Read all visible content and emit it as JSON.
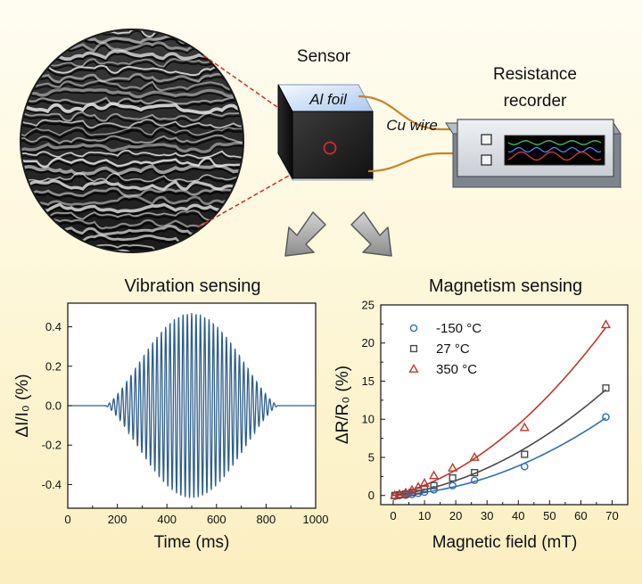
{
  "top": {
    "sensor_label": "Sensor",
    "foil_label": "Al foil",
    "wire_label": "Cu wire",
    "recorder_label_line1": "Resistance",
    "recorder_label_line2": "recorder"
  },
  "colors": {
    "vibration_line": "#2f5f8a",
    "series_cold": "#2f6fb5",
    "series_room": "#4a4a4a",
    "series_hot": "#c0392b",
    "wire": "#c7822a",
    "magnifier_outline": "#d9282a"
  },
  "chart_data": [
    {
      "type": "line",
      "title": "Vibration sensing",
      "xlabel": "Time (ms)",
      "ylabel": "ΔI/I₀ (%)",
      "xlim": [
        0,
        1000
      ],
      "ylim": [
        -0.52,
        0.52
      ],
      "xticks": [
        0,
        200,
        400,
        600,
        800,
        1000
      ],
      "yticks": [
        0.4,
        0.2,
        0.0,
        -0.2,
        -0.4
      ],
      "ytick_labels": [
        "0.4",
        "0.2",
        "0.0",
        "-0.2",
        "-0.4"
      ],
      "signal": {
        "start_ms": 150,
        "end_ms": 850,
        "center_ms": 500,
        "peak_amplitude": 0.47,
        "period_ms": 17.5
      }
    },
    {
      "type": "scatter",
      "title": "Magnetism sensing",
      "xlabel": "Magnetic field (mT)",
      "ylabel": "ΔR/R₀ (%)",
      "xlim": [
        -4,
        75
      ],
      "ylim": [
        -1.2,
        25
      ],
      "xticks": [
        0,
        10,
        20,
        30,
        40,
        50,
        60,
        70
      ],
      "yticks": [
        0,
        5,
        10,
        15,
        20,
        25
      ],
      "legend_position": "top-left",
      "series": [
        {
          "name": "-150 °C",
          "marker": "circle",
          "x": [
            0.5,
            2,
            4,
            6,
            8,
            10,
            13,
            19,
            26,
            42,
            68
          ],
          "y": [
            -0.1,
            0,
            0.05,
            0.15,
            0.3,
            0.45,
            0.75,
            1.3,
            2.0,
            3.8,
            10.3
          ]
        },
        {
          "name": "27 °C",
          "marker": "square",
          "x": [
            0.5,
            2,
            4,
            6,
            8,
            10,
            13,
            19,
            26,
            42,
            68
          ],
          "y": [
            0,
            0.1,
            0.2,
            0.4,
            0.6,
            0.9,
            1.3,
            2.3,
            3.0,
            5.4,
            14.1
          ]
        },
        {
          "name": "350 °C",
          "marker": "triangle",
          "x": [
            0.5,
            2,
            4,
            6,
            8,
            10,
            13,
            19,
            26,
            42,
            68
          ],
          "y": [
            0,
            0.15,
            0.35,
            0.7,
            1.1,
            1.6,
            2.6,
            3.6,
            5.0,
            8.9,
            22.4
          ]
        }
      ]
    }
  ]
}
